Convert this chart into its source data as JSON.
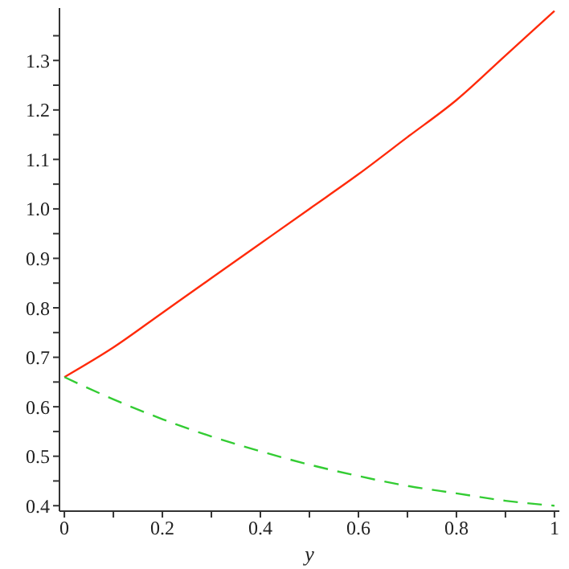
{
  "chart_data": {
    "type": "line",
    "xlabel": "y",
    "x": [
      0,
      0.1,
      0.2,
      0.3,
      0.4,
      0.5,
      0.6,
      0.7,
      0.8,
      0.9,
      1
    ],
    "series": [
      {
        "color": "#ff2a0a",
        "line_style": "solid",
        "values": [
          0.66,
          0.72,
          0.79,
          0.86,
          0.93,
          1.0,
          1.07,
          1.145,
          1.22,
          1.31,
          1.4
        ]
      },
      {
        "color": "#33cc33",
        "line_style": "dashed",
        "values": [
          0.66,
          0.615,
          0.575,
          0.54,
          0.51,
          0.483,
          0.46,
          0.44,
          0.425,
          0.41,
          0.4
        ]
      }
    ],
    "xlim": [
      -0.01,
      1.01
    ],
    "ylim": [
      0.389,
      1.406
    ],
    "xticks": [
      0,
      {
        "value": 0.1,
        "label": null
      },
      0.2,
      {
        "value": 0.3,
        "label": null
      },
      0.4,
      {
        "value": 0.5,
        "label": null
      },
      0.6,
      {
        "value": 0.7,
        "label": null
      },
      0.8,
      {
        "value": 0.9,
        "label": null
      },
      1
    ],
    "yticks": [
      0.4,
      {
        "value": 0.45,
        "label": null
      },
      0.5,
      {
        "value": 0.55,
        "label": null
      },
      0.6,
      {
        "value": 0.65,
        "label": null
      },
      0.7,
      {
        "value": 0.75,
        "label": null
      },
      0.8,
      {
        "value": 0.85,
        "label": null
      },
      0.9,
      {
        "value": 0.95,
        "label": null
      },
      {
        "value": 1.0,
        "label": "1.0"
      },
      {
        "value": 1.05,
        "label": null
      },
      1.1,
      {
        "value": 1.15,
        "label": null
      },
      1.2,
      {
        "value": 1.25,
        "label": null
      },
      1.3,
      {
        "value": 1.35,
        "label": null
      }
    ],
    "grid": false,
    "legend": false,
    "marker": "none"
  }
}
